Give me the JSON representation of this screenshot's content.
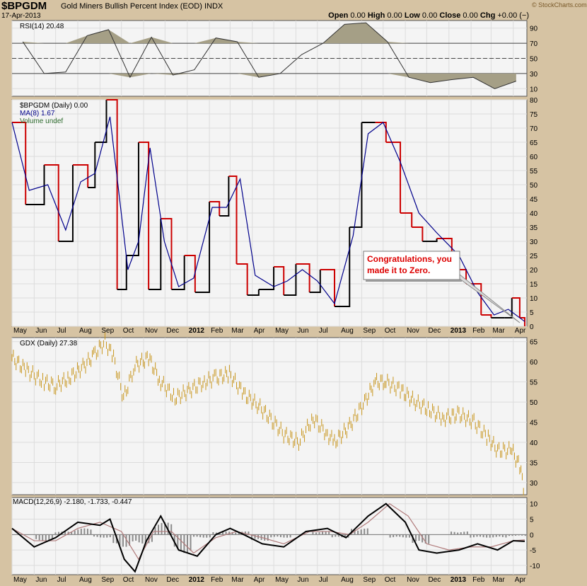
{
  "header": {
    "symbol": "$BPGDM",
    "name": "Gold Miners Bullish Percent Index (EOD)",
    "exchange": "INDX",
    "date": "17-Apr-2013",
    "open_label": "Open",
    "open": "0.00",
    "high_label": "High",
    "high": "0.00",
    "low_label": "Low",
    "low": "0.00",
    "close_label": "Close",
    "close": "0.00",
    "chg_label": "Chg",
    "chg": "+0.00 (−)",
    "copyright": "© StockCharts.com"
  },
  "annotation": {
    "line1": "Congratulations, you",
    "line2": "made it to Zero."
  },
  "colors": {
    "price": "#000000",
    "ma": "#00008b",
    "down": "#cc0000",
    "gdx": "#c8961e",
    "rsi_fill": "#a59f86",
    "macd_hist": "#8a8a8a"
  },
  "chart_data": [
    {
      "type": "line",
      "panel": "RSI",
      "legend": "RSI(14) 20.48",
      "ylim": [
        0,
        100
      ],
      "yticks": [
        10,
        30,
        50,
        70,
        90
      ],
      "levels": [
        30,
        50,
        70
      ],
      "x": [
        "May 2011",
        "Jun",
        "Jul",
        "Aug",
        "Sep",
        "Oct",
        "Nov",
        "Dec",
        "Jan 2012",
        "Feb",
        "Mar",
        "Apr",
        "May",
        "Jun",
        "Jul",
        "Aug",
        "Sep",
        "Oct",
        "Nov",
        "Dec",
        "Jan 2013",
        "Feb",
        "Mar",
        "Apr"
      ],
      "values": [
        72,
        30,
        32,
        80,
        88,
        25,
        78,
        28,
        35,
        77,
        72,
        25,
        30,
        55,
        70,
        95,
        97,
        72,
        25,
        18,
        22,
        25,
        10,
        20
      ]
    },
    {
      "type": "line",
      "panel": "BPGDM",
      "legend": [
        {
          "name": "$BPGDM (Daily) 0.00"
        },
        {
          "name": "MA(8) 1.67"
        },
        {
          "name": "Volume undef"
        }
      ],
      "ylim": [
        0,
        80
      ],
      "yticks": [
        0,
        5,
        10,
        15,
        20,
        25,
        30,
        35,
        40,
        45,
        50,
        55,
        60,
        65,
        70,
        75,
        80
      ],
      "series": [
        {
          "name": "$BPGDM (Daily) 0.00",
          "x": [
            "2011-05-01",
            "2011-05-20",
            "2011-06-15",
            "2011-07-05",
            "2011-07-25",
            "2011-08-15",
            "2011-08-25",
            "2011-09-10",
            "2011-09-25",
            "2011-10-08",
            "2011-10-25",
            "2011-11-08",
            "2011-11-25",
            "2011-12-10",
            "2011-12-28",
            "2012-01-12",
            "2012-02-01",
            "2012-02-15",
            "2012-02-28",
            "2012-03-10",
            "2012-03-25",
            "2012-04-10",
            "2012-05-01",
            "2012-05-15",
            "2012-06-01",
            "2012-06-20",
            "2012-07-05",
            "2012-07-25",
            "2012-08-15",
            "2012-09-01",
            "2012-09-20",
            "2012-10-05",
            "2012-10-25",
            "2012-11-10",
            "2012-11-25",
            "2012-12-15",
            "2013-01-05",
            "2013-01-25",
            "2013-02-15",
            "2013-03-01",
            "2013-03-20",
            "2013-03-30",
            "2013-04-10",
            "2013-04-17"
          ],
          "values": [
            72,
            43,
            57,
            30,
            57,
            49,
            65,
            80,
            13,
            25,
            65,
            13,
            38,
            13,
            25,
            12,
            44,
            39,
            53,
            22,
            11,
            13,
            21,
            11,
            22,
            12,
            20,
            7,
            35,
            72,
            72,
            65,
            40,
            35,
            30,
            31,
            20,
            15,
            4,
            3,
            3,
            10,
            3,
            0
          ]
        },
        {
          "name": "MA(8) 1.67",
          "x": [
            "2011-05-01",
            "2011-05-25",
            "2011-06-20",
            "2011-07-15",
            "2011-08-05",
            "2011-08-25",
            "2011-09-15",
            "2011-10-10",
            "2011-10-25",
            "2011-11-10",
            "2011-11-30",
            "2011-12-20",
            "2012-01-10",
            "2012-02-05",
            "2012-02-25",
            "2012-03-15",
            "2012-04-05",
            "2012-05-01",
            "2012-05-20",
            "2012-06-10",
            "2012-07-01",
            "2012-07-25",
            "2012-08-20",
            "2012-09-10",
            "2012-10-01",
            "2012-10-25",
            "2012-11-20",
            "2012-12-15",
            "2013-01-15",
            "2013-02-10",
            "2013-03-05",
            "2013-03-25",
            "2013-04-17"
          ],
          "values": [
            72,
            48,
            50,
            34,
            51,
            54,
            74,
            20,
            30,
            63,
            30,
            14,
            17,
            42,
            42,
            52,
            18,
            14,
            16,
            20,
            16,
            8,
            32,
            68,
            72,
            58,
            40,
            33,
            25,
            12,
            4,
            6,
            1.67
          ]
        }
      ]
    },
    {
      "type": "bar",
      "panel": "GDX",
      "legend": "GDX (Daily) 27.38",
      "ylim": [
        27,
        66
      ],
      "yticks": [
        30,
        35,
        40,
        45,
        50,
        55,
        60,
        65
      ],
      "x": [
        "2011-05-01",
        "2011-05-20",
        "2011-06-15",
        "2011-07-01",
        "2011-07-20",
        "2011-08-10",
        "2011-08-25",
        "2011-09-08",
        "2011-09-20",
        "2011-10-04",
        "2011-10-20",
        "2011-11-08",
        "2011-11-25",
        "2011-12-15",
        "2012-01-05",
        "2012-01-25",
        "2012-02-10",
        "2012-02-29",
        "2012-03-20",
        "2012-04-10",
        "2012-05-01",
        "2012-05-15",
        "2012-06-05",
        "2012-06-25",
        "2012-07-15",
        "2012-07-25",
        "2012-08-15",
        "2012-09-05",
        "2012-09-20",
        "2012-10-05",
        "2012-10-25",
        "2012-11-15",
        "2012-12-05",
        "2012-12-25",
        "2013-01-15",
        "2013-02-05",
        "2013-02-25",
        "2013-03-10",
        "2013-03-30",
        "2013-04-10",
        "2013-04-17"
      ],
      "values": [
        61,
        58,
        55,
        54,
        56,
        59,
        62,
        65,
        61,
        51,
        59,
        61,
        55,
        51,
        53,
        55,
        56,
        57,
        52,
        49,
        45,
        42,
        40,
        46,
        42,
        40,
        44,
        50,
        55,
        55,
        53,
        50,
        48,
        46,
        47,
        45,
        41,
        38,
        38,
        34,
        27.38
      ]
    },
    {
      "type": "line",
      "panel": "MACD",
      "legend": "MACD(12,26,9) -2.180, -1.733, -0.447",
      "ylim": [
        -13,
        12
      ],
      "yticks": [
        -10,
        -5,
        0,
        5,
        10
      ],
      "series": [
        {
          "name": "MACD",
          "x": [
            "2011-05-01",
            "2011-06-01",
            "2011-07-01",
            "2011-08-01",
            "2011-09-01",
            "2011-09-15",
            "2011-10-05",
            "2011-10-20",
            "2011-11-05",
            "2011-11-25",
            "2011-12-20",
            "2012-01-15",
            "2012-02-10",
            "2012-03-01",
            "2012-03-20",
            "2012-04-15",
            "2012-05-15",
            "2012-06-15",
            "2012-07-15",
            "2012-08-10",
            "2012-09-10",
            "2012-10-05",
            "2012-11-01",
            "2012-11-20",
            "2012-12-15",
            "2013-01-15",
            "2013-02-10",
            "2013-03-10",
            "2013-04-01",
            "2013-04-17"
          ],
          "values": [
            2,
            -4,
            -1,
            4,
            3,
            5,
            -8,
            -12,
            -2,
            6,
            -5,
            -7,
            0,
            2,
            0,
            -3,
            -4,
            1,
            2,
            -1,
            6,
            10,
            4,
            -5,
            -6,
            -5,
            -3,
            -5,
            -2,
            -2.18
          ]
        },
        {
          "name": "Signal",
          "x": [
            "2011-05-01",
            "2011-06-01",
            "2011-07-01",
            "2011-08-01",
            "2011-09-01",
            "2011-10-01",
            "2011-10-25",
            "2011-11-15",
            "2011-12-10",
            "2012-01-10",
            "2012-02-10",
            "2012-03-10",
            "2012-04-15",
            "2012-05-15",
            "2012-06-20",
            "2012-07-20",
            "2012-08-15",
            "2012-09-10",
            "2012-10-10",
            "2012-11-05",
            "2012-12-01",
            "2013-01-01",
            "2013-02-01",
            "2013-03-01",
            "2013-04-01",
            "2013-04-17"
          ],
          "values": [
            2,
            -2,
            -2,
            2,
            4,
            1,
            -8,
            1,
            1,
            -6,
            -1,
            1,
            -1,
            -3,
            1,
            1,
            0,
            4,
            10,
            6,
            -3,
            -5,
            -4,
            -4,
            -2,
            -1.733
          ]
        },
        {
          "name": "Histogram",
          "values": [
            0,
            -2,
            1,
            2,
            -1,
            -4,
            -3,
            4,
            -6,
            -1,
            1,
            1,
            -2,
            -1,
            0,
            1,
            -1,
            2,
            0,
            -1,
            -3,
            0,
            1,
            -1,
            -1,
            -0.447
          ]
        }
      ]
    }
  ],
  "axis": {
    "months": [
      "May",
      "Jun",
      "Jul",
      "Aug",
      "Sep",
      "Oct",
      "Nov",
      "Dec",
      "2012",
      "Feb",
      "Mar",
      "Apr",
      "May",
      "Jun",
      "Jul",
      "Aug",
      "Sep",
      "Oct",
      "Nov",
      "Dec",
      "2013",
      "Feb",
      "Mar",
      "Apr"
    ]
  }
}
